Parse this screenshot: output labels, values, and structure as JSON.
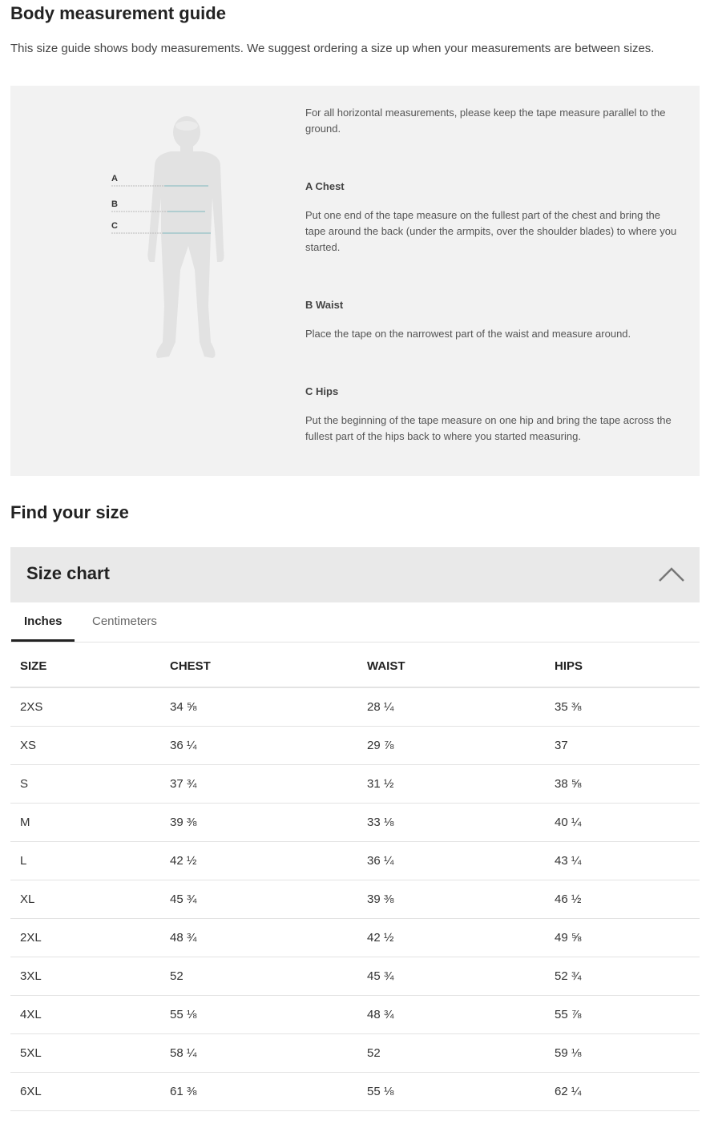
{
  "guide": {
    "title": "Body measurement guide",
    "intro": "This size guide shows body measurements. We suggest ordering a size up when your measurements are between sizes.",
    "figure_labels": [
      "A",
      "B",
      "C"
    ],
    "horizontal_note": "For all horizontal measurements, please keep the tape measure parallel to the ground.",
    "sections": [
      {
        "heading": "A Chest",
        "text": "Put one end of the tape measure on the fullest part of the chest and bring the tape around the back (under the armpits, over the shoulder blades) to where you started."
      },
      {
        "heading": "B Waist",
        "text": "Place the tape on the narrowest part of the waist and measure around."
      },
      {
        "heading": "C Hips",
        "text": "Put the beginning of the tape measure on one hip and bring the tape across the fullest part of the hips back to where you started measuring."
      }
    ],
    "accent_color": "#7fb8bd"
  },
  "find": {
    "title": "Find your size"
  },
  "size_chart": {
    "title": "Size chart",
    "expanded": true,
    "chevron_icon": "chevron-up-icon",
    "tabs": [
      {
        "label": "Inches",
        "active": true
      },
      {
        "label": "Centimeters",
        "active": false
      }
    ],
    "columns": [
      "SIZE",
      "CHEST",
      "WAIST",
      "HIPS"
    ],
    "rows": [
      [
        "2XS",
        "34 ⅝",
        "28 ¼",
        "35 ⅜"
      ],
      [
        "XS",
        "36 ¼",
        "29 ⅞",
        "37"
      ],
      [
        "S",
        "37 ¾",
        "31 ½",
        "38 ⅝"
      ],
      [
        "M",
        "39 ⅜",
        "33 ⅛",
        "40 ¼"
      ],
      [
        "L",
        "42 ½",
        "36 ¼",
        "43 ¼"
      ],
      [
        "XL",
        "45 ¾",
        "39 ⅜",
        "46 ½"
      ],
      [
        "2XL",
        "48 ¾",
        "42 ½",
        "49 ⅝"
      ],
      [
        "3XL",
        "52",
        "45 ¾",
        "52 ¾"
      ],
      [
        "4XL",
        "55 ⅛",
        "48 ¾",
        "55 ⅞"
      ],
      [
        "5XL",
        "58 ¼",
        "52",
        "59 ⅛"
      ],
      [
        "6XL",
        "61 ⅜",
        "55 ⅛",
        "62 ¼"
      ]
    ]
  }
}
